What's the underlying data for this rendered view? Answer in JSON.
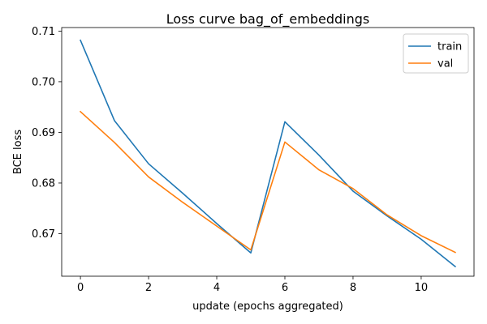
{
  "chart_data": {
    "type": "line",
    "title": "Loss curve bag_of_embeddings",
    "xlabel": "update (epochs aggregated)",
    "ylabel": "BCE loss",
    "x": [
      0,
      1,
      2,
      3,
      4,
      5,
      6,
      7,
      8,
      9,
      10,
      11
    ],
    "xlim": [
      -0.55,
      11.55
    ],
    "ylim": [
      0.6616,
      0.7107
    ],
    "xticks": [
      0,
      2,
      4,
      6,
      8,
      10
    ],
    "yticks": [
      0.67,
      0.68,
      0.69,
      0.7,
      0.71
    ],
    "xtick_labels": [
      "0",
      "2",
      "4",
      "6",
      "8",
      "10"
    ],
    "ytick_labels": [
      "0.67",
      "0.68",
      "0.69",
      "0.70",
      "0.71"
    ],
    "grid": false,
    "legend": "top-right",
    "series": [
      {
        "name": "train",
        "color": "#1f77b4",
        "values": [
          0.7082,
          0.6923,
          0.6838,
          0.678,
          0.672,
          0.6662,
          0.6921,
          0.6855,
          0.6784,
          0.6735,
          0.6689,
          0.6635
        ]
      },
      {
        "name": "val",
        "color": "#ff7f0e",
        "values": [
          0.6941,
          0.688,
          0.6812,
          0.6762,
          0.6715,
          0.6668,
          0.6881,
          0.6826,
          0.6789,
          0.6737,
          0.6696,
          0.6663
        ]
      }
    ]
  }
}
